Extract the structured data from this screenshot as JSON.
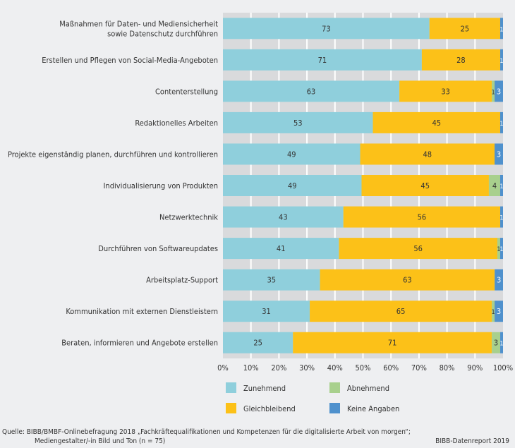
{
  "chart_data": {
    "type": "bar",
    "orientation": "horizontal",
    "stacked": true,
    "normalized_percent": true,
    "categories": [
      [
        "Maßnahmen für Daten- und Mediensicherheit",
        "sowie Datenschutz durchführen"
      ],
      [
        "Erstellen und Pflegen von Social-Media-Angeboten"
      ],
      [
        "Contenterstellung"
      ],
      [
        "Redaktionelles Arbeiten"
      ],
      [
        "Projekte eigenständig planen, durchführen und kontrollieren"
      ],
      [
        "Individualisierung von Produkten"
      ],
      [
        "Netzwerktechnik"
      ],
      [
        "Durchführen von Softwareupdates"
      ],
      [
        "Arbeitsplatz-Support"
      ],
      [
        "Kommunikation mit externen Dienstleistern"
      ],
      [
        "Beraten, informieren und Angebote erstellen"
      ]
    ],
    "series": [
      {
        "name": "Zunehmend",
        "color": "#8fcfdc",
        "values": [
          73,
          71,
          63,
          53,
          49,
          49,
          43,
          41,
          35,
          31,
          25
        ]
      },
      {
        "name": "Gleichbleibend",
        "color": "#fcc118",
        "values": [
          25,
          28,
          33,
          45,
          48,
          45,
          56,
          56,
          63,
          65,
          71
        ]
      },
      {
        "name": "Abnehmend",
        "color": "#a8d08d",
        "values": [
          0,
          0,
          1,
          0,
          0,
          4,
          0,
          1,
          0,
          1,
          3
        ]
      },
      {
        "name": "Keine Angaben",
        "color": "#4f91cd",
        "values": [
          1,
          1,
          3,
          1,
          3,
          1,
          1,
          1,
          3,
          3,
          1
        ]
      }
    ],
    "xlim": [
      0,
      100
    ],
    "xticks": [
      "0%",
      "10%",
      "20%",
      "30%",
      "40%",
      "50%",
      "60%",
      "70%",
      "80%",
      "90%",
      "100%"
    ],
    "grid": true,
    "legend_placement": "bottom",
    "legend_order": [
      "Zunehmend",
      "Abnehmend",
      "Gleichbleibend",
      "Keine Angaben"
    ]
  },
  "footer": {
    "source_line1": "Quelle: BIBB/BMBF-Onlinebefragung 2018 „Fachkräftequalifikationen und Kompetenzen für die digitalisierte Arbeit von morgen“;",
    "source_line2": "Mediengestalter/-in Bild und Ton (n = 75)",
    "report": "BIBB-Datenreport 2019"
  }
}
